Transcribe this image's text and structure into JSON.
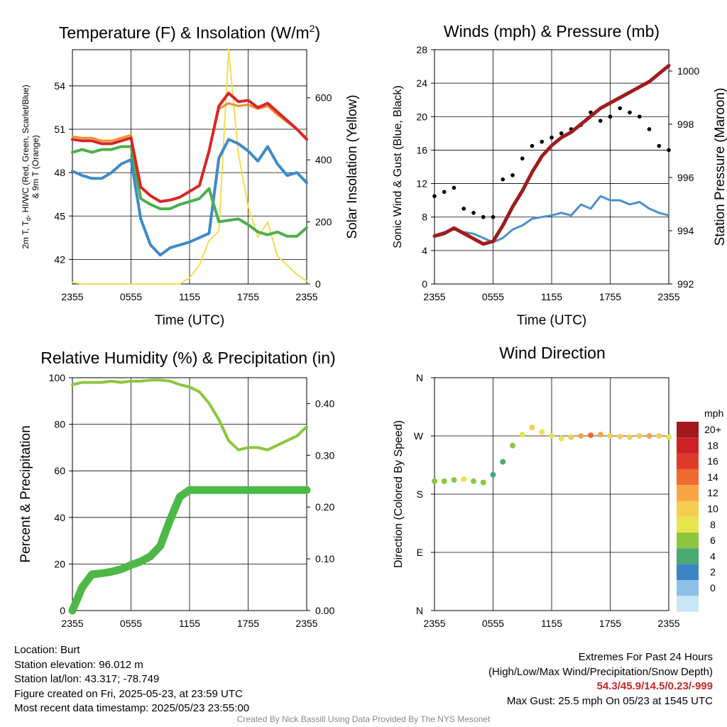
{
  "chart_data": [
    {
      "type": "line",
      "title": "Temperature (F) & Insolation (W/m²)",
      "title_main": "Temperature (F) & Insolation (W/m",
      "title_sup": "2",
      "title_tail": ")",
      "xlabel": "Time (UTC)",
      "ylabel_lines": [
        "2m T, T",
        "d",
        ", HI/WC (Red, Green, Scarlet/Blue)",
        "& 9m T (Orange)"
      ],
      "y2label": "Solar Insolation (Yellow)",
      "x_ticks": [
        "2355",
        "0555",
        "1155",
        "1755",
        "2355"
      ],
      "x": [
        0,
        1,
        2,
        3,
        4,
        5,
        6,
        7,
        8,
        9,
        10,
        11,
        12,
        13,
        14,
        15,
        16,
        17,
        18,
        19,
        20,
        21,
        22,
        23,
        24
      ],
      "ylim": [
        40.3,
        56.5
      ],
      "y_ticks": [
        42,
        45,
        48,
        51,
        54
      ],
      "y2lim": [
        0,
        755
      ],
      "y2_ticks": [
        0,
        200,
        400,
        600
      ],
      "series": [
        {
          "name": "2m T",
          "axis": "left",
          "color": "#d62728",
          "width": 4,
          "values": [
            50.3,
            50.2,
            50.2,
            50.0,
            50.0,
            50.2,
            50.4,
            47.0,
            46.4,
            46.0,
            46.1,
            46.3,
            46.7,
            47.1,
            49.5,
            52.6,
            53.5,
            52.9,
            53.0,
            52.5,
            52.8,
            52.2,
            51.6,
            51.0,
            50.3
          ]
        },
        {
          "name": "9m T",
          "axis": "left",
          "color": "#f28e2b",
          "width": 3,
          "values": [
            50.5,
            50.4,
            50.4,
            50.2,
            50.2,
            50.4,
            50.6,
            47.0,
            46.4,
            46.0,
            46.1,
            46.3,
            46.7,
            47.1,
            49.5,
            52.4,
            52.8,
            52.6,
            52.7,
            52.4,
            52.6,
            52.0,
            51.5,
            51.0,
            50.4
          ]
        },
        {
          "name": "Td",
          "axis": "left",
          "color": "#4daf4a",
          "width": 4,
          "values": [
            49.4,
            49.6,
            49.4,
            49.6,
            49.6,
            49.8,
            49.8,
            46.2,
            45.8,
            45.5,
            45.5,
            45.8,
            46.0,
            46.2,
            46.9,
            44.6,
            44.7,
            44.8,
            44.4,
            43.9,
            43.7,
            43.9,
            43.6,
            43.6,
            44.2
          ]
        },
        {
          "name": "HI/WC",
          "axis": "left",
          "color": "#3d8bc9",
          "width": 4,
          "values": [
            48.1,
            47.8,
            47.6,
            47.6,
            48.0,
            48.6,
            48.9,
            44.8,
            43.0,
            42.3,
            42.8,
            43.0,
            43.2,
            43.5,
            43.8,
            49.0,
            50.3,
            50.0,
            49.5,
            48.8,
            49.8,
            48.6,
            47.8,
            48.0,
            47.3
          ]
        },
        {
          "name": "Solar Insolation",
          "axis": "right",
          "color": "#f7dc4d",
          "width": 2,
          "values": [
            5,
            0,
            0,
            0,
            0,
            0,
            0,
            0,
            0,
            0,
            0,
            0,
            20,
            60,
            140,
            170,
            755,
            420,
            250,
            150,
            200,
            90,
            60,
            30,
            10
          ]
        }
      ]
    },
    {
      "type": "line",
      "title": "Winds (mph) & Pressure (mb)",
      "xlabel": "Time (UTC)",
      "ylabel": "Sonic Wind & Gust (Blue, Black)",
      "y2label": "Station Pressure (Maroon)",
      "x_ticks": [
        "2355",
        "0555",
        "1155",
        "1755",
        "2355"
      ],
      "x": [
        0,
        1,
        2,
        3,
        4,
        5,
        6,
        7,
        8,
        9,
        10,
        11,
        12,
        13,
        14,
        15,
        16,
        17,
        18,
        19,
        20,
        21,
        22,
        23,
        24
      ],
      "ylim": [
        0,
        28
      ],
      "y_ticks": [
        0,
        4,
        8,
        12,
        16,
        20,
        24,
        28
      ],
      "y2lim": [
        992,
        1000.8
      ],
      "y2_ticks": [
        992,
        994,
        996,
        998,
        1000
      ],
      "series": [
        {
          "name": "Sonic Wind",
          "axis": "left",
          "color": "#4a90d0",
          "width": 3,
          "values": [
            5.8,
            6.2,
            6.5,
            6.2,
            6.0,
            5.5,
            5.0,
            5.5,
            6.5,
            7.0,
            7.8,
            8.0,
            8.2,
            8.5,
            8.2,
            9.5,
            9.0,
            10.5,
            10.0,
            10.0,
            9.5,
            9.8,
            9.0,
            8.5,
            8.2
          ]
        },
        {
          "name": "Gust",
          "axis": "left",
          "color": "#000000",
          "type": "scatter",
          "values": [
            10.5,
            11.0,
            11.5,
            9.0,
            8.5,
            8.0,
            8.0,
            12.5,
            13.0,
            15.0,
            16.5,
            17.0,
            17.5,
            18.0,
            18.5,
            19.0,
            20.5,
            19.5,
            20.0,
            21.0,
            20.5,
            20.0,
            18.5,
            16.5,
            16.0
          ]
        },
        {
          "name": "Station Pressure",
          "axis": "right",
          "color": "#a01c1c",
          "width": 5,
          "values": [
            993.8,
            993.9,
            994.1,
            993.9,
            993.7,
            993.5,
            993.6,
            994.2,
            994.9,
            995.5,
            996.2,
            996.8,
            997.2,
            997.5,
            997.7,
            998.0,
            998.3,
            998.6,
            998.8,
            999.0,
            999.2,
            999.4,
            999.6,
            999.9,
            1000.2
          ]
        }
      ]
    },
    {
      "type": "line",
      "title": "Relative Humidity (%) & Precipitation (in)",
      "ylabel": "Percent & Precipitation",
      "x_ticks": [
        "2355",
        "0555",
        "1155",
        "1755",
        "2355"
      ],
      "x": [
        0,
        1,
        2,
        3,
        4,
        5,
        6,
        7,
        8,
        9,
        10,
        11,
        12,
        13,
        14,
        15,
        16,
        17,
        18,
        19,
        20,
        21,
        22,
        23,
        24
      ],
      "ylim": [
        0,
        100
      ],
      "y_ticks": [
        0,
        20,
        40,
        60,
        80,
        100
      ],
      "y2lim": [
        0,
        0.45
      ],
      "y2_ticks": [
        "0.00",
        "0.10",
        "0.20",
        "0.30",
        "0.40"
      ],
      "series": [
        {
          "name": "Relative Humidity",
          "axis": "left",
          "color": "#8cc63f",
          "width": 4,
          "values": [
            97,
            98,
            98,
            98,
            98.5,
            98,
            98.5,
            98.5,
            99,
            99,
            98.5,
            97,
            96,
            94,
            89,
            82,
            73,
            69,
            70,
            70,
            69,
            71,
            73,
            75,
            79
          ]
        },
        {
          "name": "Precipitation",
          "axis": "right",
          "color": "#4db848",
          "width": 11,
          "values": [
            0,
            0.045,
            0.07,
            0.072,
            0.075,
            0.08,
            0.088,
            0.095,
            0.105,
            0.125,
            0.175,
            0.22,
            0.233,
            0.233,
            0.233,
            0.233,
            0.233,
            0.233,
            0.233,
            0.233,
            0.233,
            0.233,
            0.233,
            0.233,
            0.233
          ]
        }
      ]
    },
    {
      "type": "scatter",
      "title": "Wind Direction",
      "ylabel": "Direction (Colored By Speed)",
      "x_ticks": [
        "2355",
        "0555",
        "1155",
        "1755",
        "2355"
      ],
      "y_ticks": [
        "N",
        "E",
        "S",
        "W",
        "N"
      ],
      "ylim": [
        0,
        360
      ],
      "x": [
        0,
        1,
        2,
        3,
        4,
        5,
        6,
        7,
        8,
        9,
        10,
        11,
        12,
        13,
        14,
        15,
        16,
        17,
        18,
        19,
        20,
        21,
        22,
        23,
        24
      ],
      "values": [
        200,
        200,
        202,
        203,
        200,
        198,
        210,
        230,
        255,
        272,
        283,
        276,
        270,
        266,
        268,
        270,
        271,
        272,
        270,
        269,
        268,
        270,
        270,
        270,
        268
      ],
      "speeds": [
        5,
        6,
        6,
        7,
        6,
        5,
        4,
        4,
        6,
        8,
        9,
        8,
        8,
        8,
        9,
        11,
        13,
        11,
        10,
        10,
        9,
        10,
        11,
        9,
        8
      ],
      "legend_title": "mph",
      "legend_labels": [
        "20+",
        "18",
        "16",
        "14",
        "12",
        "10",
        "8",
        "6",
        "4",
        "2",
        "0"
      ],
      "legend_colors": [
        "#a3181d",
        "#cd2127",
        "#e03b2a",
        "#f16a30",
        "#f9a546",
        "#f5cd53",
        "#e6e54c",
        "#8cc63f",
        "#4aa872",
        "#3b85c4",
        "#8dc0e6",
        "#c9e6f6"
      ]
    }
  ],
  "footer": {
    "location": "Location: Burt",
    "elevation": "Station elevation: 96.012 m",
    "latlon": "Station lat/lon: 43.317; -78.749",
    "created": "Figure created on Fri, 2025-05-23, at 23:59 UTC",
    "recent": "Most recent data timestamp: 2025/05/23 23:55:00",
    "extremes_title": "Extremes For Past 24 Hours",
    "extremes_legend": "(High/Low/Max Wind/Precipitation/Snow Depth)",
    "extremes_values": "54.3/45.9/14.5/0.23/-999",
    "max_gust": "Max Gust: 25.5 mph On 05/23 at 1545 UTC",
    "credit": "Created By Nick Bassill Using Data Provided By The NYS Mesonet"
  }
}
